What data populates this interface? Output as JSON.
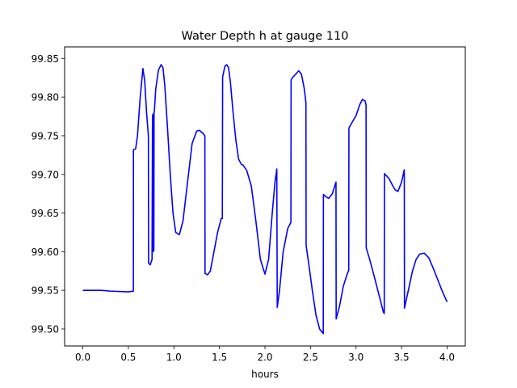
{
  "chart_data": {
    "type": "line",
    "title": "Water Depth h at gauge 110",
    "xlabel": "hours",
    "ylabel": "",
    "xlim": [
      -0.2,
      4.2
    ],
    "ylim": [
      99.478,
      99.865
    ],
    "xticks": [
      0.0,
      0.5,
      1.0,
      1.5,
      2.0,
      2.5,
      3.0,
      3.5,
      4.0
    ],
    "xtick_labels": [
      "0.0",
      "0.5",
      "1.0",
      "1.5",
      "2.0",
      "2.5",
      "3.0",
      "3.5",
      "4.0"
    ],
    "yticks": [
      99.5,
      99.55,
      99.6,
      99.65,
      99.7,
      99.75,
      99.8,
      99.85
    ],
    "ytick_labels": [
      "99.50",
      "99.55",
      "99.60",
      "99.65",
      "99.70",
      "99.75",
      "99.80",
      "99.85"
    ],
    "grid": false,
    "color": "#0000ff",
    "series": [
      {
        "x": [
          0.0,
          0.2,
          0.3,
          0.5,
          0.555,
          0.556,
          0.58,
          0.6,
          0.63,
          0.66,
          0.68,
          0.7,
          0.72,
          0.722,
          0.74,
          0.76,
          0.765,
          0.77,
          0.772,
          0.78,
          0.782,
          0.79,
          0.8,
          0.83,
          0.86,
          0.88,
          0.9,
          0.93,
          0.96,
          0.99,
          1.02,
          1.06,
          1.1,
          1.15,
          1.2,
          1.25,
          1.28,
          1.3,
          1.32,
          1.34,
          1.342,
          1.37,
          1.4,
          1.44,
          1.48,
          1.52,
          1.532,
          1.535,
          1.56,
          1.58,
          1.6,
          1.62,
          1.65,
          1.68,
          1.71,
          1.74,
          1.76,
          1.8,
          1.85,
          1.9,
          1.95,
          2.0,
          2.04,
          2.08,
          2.11,
          2.13,
          2.135,
          2.16,
          2.2,
          2.25,
          2.285,
          2.287,
          2.3,
          2.34,
          2.37,
          2.4,
          2.43,
          2.45,
          2.452,
          2.48,
          2.52,
          2.56,
          2.6,
          2.64,
          2.642,
          2.67,
          2.7,
          2.74,
          2.78,
          2.782,
          2.82,
          2.86,
          2.9,
          2.92,
          2.922,
          2.96,
          3.0,
          3.04,
          3.07,
          3.1,
          3.11,
          3.112,
          3.15,
          3.2,
          3.25,
          3.3,
          3.31,
          3.312,
          3.36,
          3.4,
          3.43,
          3.46,
          3.5,
          3.53,
          3.532,
          3.58,
          3.62,
          3.66,
          3.7,
          3.75,
          3.8,
          3.85,
          3.9,
          3.95,
          4.0
        ],
        "y": [
          99.55,
          99.55,
          99.549,
          99.548,
          99.549,
          99.732,
          99.733,
          99.75,
          99.8,
          99.837,
          99.82,
          99.78,
          99.75,
          99.585,
          99.583,
          99.59,
          99.775,
          99.778,
          99.6,
          99.602,
          99.778,
          99.79,
          99.81,
          99.835,
          99.842,
          99.838,
          99.815,
          99.76,
          99.7,
          99.65,
          99.625,
          99.622,
          99.64,
          99.69,
          99.74,
          99.756,
          99.757,
          99.755,
          99.753,
          99.75,
          99.572,
          99.57,
          99.575,
          99.6,
          99.625,
          99.643,
          99.643,
          99.826,
          99.84,
          99.842,
          99.838,
          99.82,
          99.78,
          99.745,
          99.72,
          99.713,
          99.712,
          99.705,
          99.685,
          99.64,
          99.59,
          99.571,
          99.59,
          99.65,
          99.69,
          99.707,
          99.528,
          99.55,
          99.6,
          99.63,
          99.638,
          99.822,
          99.825,
          99.83,
          99.834,
          99.83,
          99.812,
          99.793,
          99.608,
          99.585,
          99.55,
          99.518,
          99.5,
          99.494,
          99.674,
          99.671,
          99.669,
          99.675,
          99.69,
          99.513,
          99.53,
          99.555,
          99.57,
          99.576,
          99.76,
          99.768,
          99.776,
          99.79,
          99.797,
          99.795,
          99.79,
          99.605,
          99.59,
          99.568,
          99.545,
          99.522,
          99.52,
          99.701,
          99.695,
          99.686,
          99.68,
          99.678,
          99.69,
          99.706,
          99.527,
          99.553,
          99.575,
          99.59,
          99.597,
          99.598,
          99.592,
          99.578,
          99.563,
          99.548,
          99.535
        ]
      }
    ]
  }
}
